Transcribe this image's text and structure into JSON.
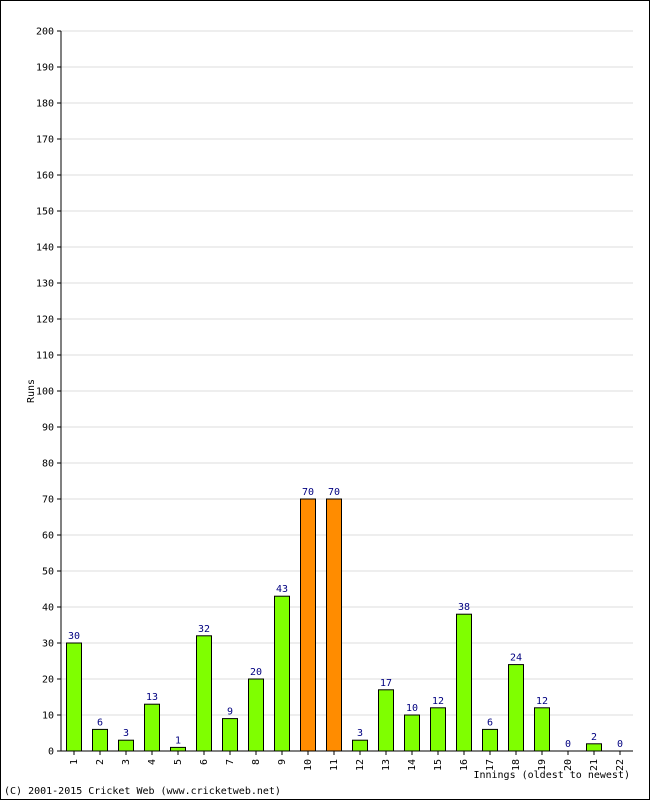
{
  "chart_data": {
    "type": "bar",
    "title": "",
    "xlabel": "Innings (oldest to newest)",
    "ylabel": "Runs",
    "ylim": [
      0,
      200
    ],
    "ytick_step": 10,
    "grid": true,
    "categories": [
      "1",
      "2",
      "3",
      "4",
      "5",
      "6",
      "7",
      "8",
      "9",
      "10",
      "11",
      "12",
      "13",
      "14",
      "15",
      "16",
      "17",
      "18",
      "19",
      "20",
      "21",
      "22"
    ],
    "values": [
      30,
      6,
      3,
      13,
      1,
      32,
      9,
      20,
      43,
      70,
      70,
      3,
      17,
      10,
      12,
      38,
      6,
      24,
      12,
      0,
      2,
      0
    ],
    "highlighted": [
      false,
      false,
      false,
      false,
      false,
      false,
      false,
      false,
      false,
      true,
      true,
      false,
      false,
      false,
      false,
      false,
      false,
      false,
      false,
      false,
      false,
      false
    ],
    "colors": {
      "bar": "#7FFF00",
      "bar_highlight": "#FF8C00",
      "bar_stroke": "#000000",
      "value_label": "#000080",
      "grid": "#DDDDDD",
      "axis": "#000000"
    }
  },
  "footer": {
    "copyright": "(C) 2001-2015 Cricket Web (www.cricketweb.net)"
  }
}
